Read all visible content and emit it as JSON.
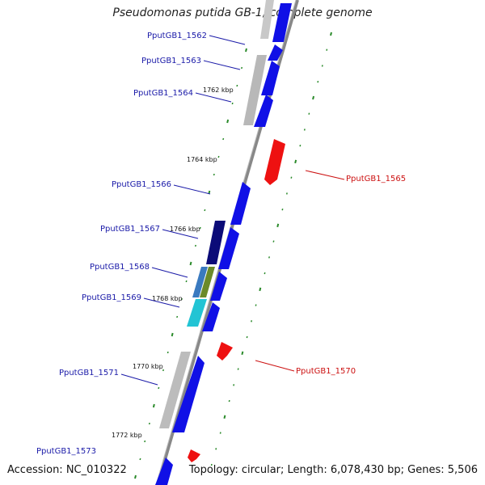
{
  "title": "Pseudomonas putida GB-1, complete genome",
  "footer": {
    "accession": "Accession: NC_010322",
    "summary": "Topology: circular; Length: 6,078,430 bp; Genes: 5,506"
  },
  "colors": {
    "backbone": "#888888",
    "forward_gene": "#1010e6",
    "reverse_gene": "#ee1111",
    "forward_label": "#1a1aa8",
    "reverse_label": "#cc1111",
    "tick": "#2a8a2a"
  },
  "ticks": [
    {
      "label": "1762 kbp",
      "pos_kbp": 1762
    },
    {
      "label": "1764 kbp",
      "pos_kbp": 1764
    },
    {
      "label": "1766 kbp",
      "pos_kbp": 1766
    },
    {
      "label": "1768 kbp",
      "pos_kbp": 1768
    },
    {
      "label": "1770 kbp",
      "pos_kbp": 1770
    },
    {
      "label": "1772 kbp",
      "pos_kbp": 1772
    }
  ],
  "genes_forward": [
    {
      "label": "PputGB1_1562"
    },
    {
      "label": "PputGB1_1563"
    },
    {
      "label": "PputGB1_1564"
    },
    {
      "label": "PputGB1_1566"
    },
    {
      "label": "PputGB1_1567"
    },
    {
      "label": "PputGB1_1568"
    },
    {
      "label": "PputGB1_1569"
    },
    {
      "label": "PputGB1_1571"
    },
    {
      "label": "PputGB1_1573"
    }
  ],
  "genes_reverse": [
    {
      "label": "PputGB1_1565"
    },
    {
      "label": "PputGB1_1570"
    }
  ]
}
